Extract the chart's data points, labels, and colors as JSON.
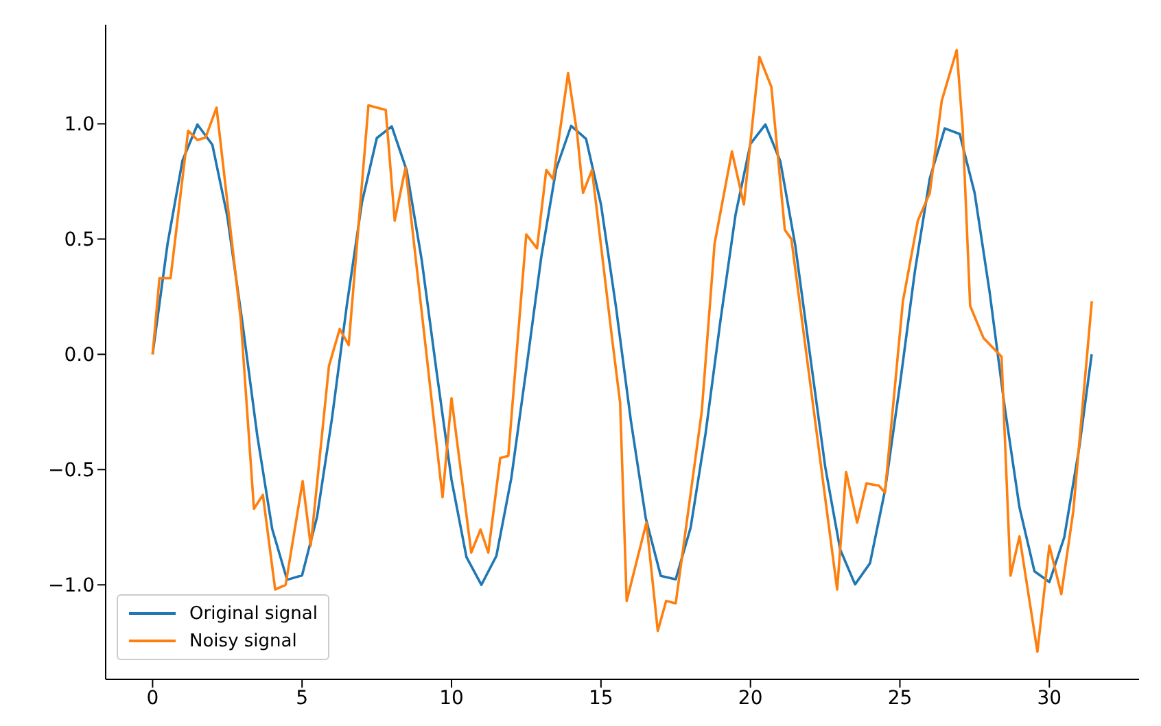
{
  "chart_data": {
    "type": "line",
    "xlim": [
      -1.57,
      33.0
    ],
    "ylim": [
      -1.41,
      1.43
    ],
    "xticks": [
      0,
      5,
      10,
      15,
      20,
      25,
      30
    ],
    "yticks": [
      {
        "value": -1,
        "label": "−1.0"
      },
      {
        "value": -0.5,
        "label": "−0.5"
      },
      {
        "value": 0,
        "label": "0.0"
      },
      {
        "value": 0.5,
        "label": "0.5"
      },
      {
        "value": 1,
        "label": "1.0"
      }
    ],
    "grid": false,
    "legend": "bottom left",
    "marker": "none",
    "line_style": "solid",
    "series": [
      {
        "name": "Original signal",
        "color": "#1f77b4",
        "x": [
          0,
          0.5,
          1,
          1.5,
          2,
          2.5,
          3,
          3.5,
          4,
          4.5,
          5,
          5.5,
          6,
          6.5,
          7,
          7.5,
          8,
          8.5,
          9,
          9.5,
          10,
          10.5,
          11,
          11.5,
          12,
          12.5,
          13,
          13.5,
          14,
          14.5,
          15,
          15.5,
          16,
          16.5,
          17,
          17.5,
          18,
          18.5,
          19,
          19.5,
          20,
          20.5,
          21,
          21.5,
          22,
          22.5,
          23,
          23.5,
          24,
          24.5,
          25,
          25.5,
          26,
          26.5,
          27,
          27.5,
          28,
          28.5,
          29,
          29.5,
          30,
          30.5,
          31,
          31.416
        ],
        "values": [
          0,
          0.479,
          0.841,
          0.997,
          0.909,
          0.598,
          0.141,
          -0.351,
          -0.757,
          -0.978,
          -0.959,
          -0.706,
          -0.279,
          0.215,
          0.657,
          0.938,
          0.989,
          0.798,
          0.412,
          -0.075,
          -0.544,
          -0.88,
          -1.0,
          -0.875,
          -0.537,
          -0.066,
          0.42,
          0.804,
          0.991,
          0.935,
          0.65,
          0.207,
          -0.288,
          -0.712,
          -0.961,
          -0.976,
          -0.751,
          -0.342,
          0.15,
          0.605,
          0.913,
          0.997,
          0.837,
          0.472,
          -0.009,
          -0.487,
          -0.846,
          -0.998,
          -0.906,
          -0.591,
          -0.132,
          0.359,
          0.763,
          0.98,
          0.956,
          0.7,
          0.271,
          -0.224,
          -0.664,
          -0.941,
          -0.988,
          -0.793,
          -0.404,
          0
        ]
      },
      {
        "name": "Noisy signal",
        "color": "#ff7f0e",
        "x": [
          0,
          0.23,
          0.6,
          1.19,
          1.5,
          1.77,
          2.14,
          2.95,
          3.39,
          3.69,
          4.1,
          4.45,
          5.02,
          5.29,
          5.9,
          6.26,
          6.56,
          7.22,
          7.8,
          8.1,
          8.46,
          9.7,
          10.0,
          10.66,
          10.97,
          11.23,
          11.63,
          11.9,
          12.5,
          12.86,
          13.17,
          13.4,
          13.9,
          14.2,
          14.4,
          14.7,
          15.37,
          15.64,
          15.86,
          16.52,
          16.9,
          17.18,
          17.5,
          18.37,
          18.8,
          19.38,
          19.78,
          20.3,
          20.7,
          21.15,
          21.37,
          22.9,
          23.2,
          23.57,
          23.88,
          24.3,
          24.5,
          25.1,
          25.6,
          26.0,
          26.4,
          26.9,
          27.1,
          27.35,
          27.8,
          28.4,
          28.7,
          29.0,
          29.6,
          30.0,
          30.4,
          30.8,
          31.42
        ],
        "values": [
          0,
          0.33,
          0.33,
          0.97,
          0.93,
          0.94,
          1.07,
          0.15,
          -0.67,
          -0.61,
          -1.02,
          -1.0,
          -0.55,
          -0.83,
          -0.05,
          0.11,
          0.04,
          1.08,
          1.06,
          0.58,
          0.81,
          -0.62,
          -0.19,
          -0.86,
          -0.76,
          -0.86,
          -0.45,
          -0.44,
          0.52,
          0.46,
          0.8,
          0.76,
          1.22,
          0.96,
          0.7,
          0.8,
          0.07,
          -0.21,
          -1.07,
          -0.73,
          -1.2,
          -1.07,
          -1.08,
          -0.25,
          0.48,
          0.88,
          0.65,
          1.29,
          1.16,
          0.54,
          0.5,
          -1.02,
          -0.51,
          -0.73,
          -0.56,
          -0.57,
          -0.6,
          0.23,
          0.58,
          0.7,
          1.1,
          1.32,
          0.98,
          0.21,
          0.07,
          -0.01,
          -0.96,
          -0.79,
          -1.29,
          -0.83,
          -1.04,
          -0.68,
          0.23
        ]
      }
    ]
  }
}
